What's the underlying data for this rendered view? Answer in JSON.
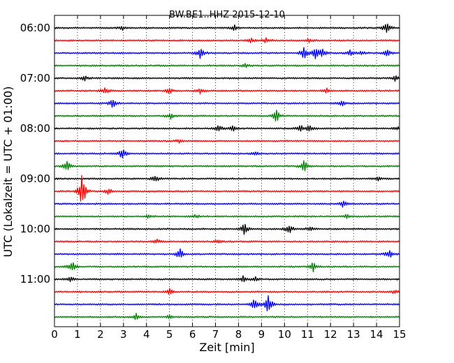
{
  "chart_data": {
    "type": "line",
    "title": "BW.BE1..HHZ 2015-12-10",
    "xlabel": "Zeit  [min]",
    "ylabel": "UTC (Lokalzeit = UTC + 01:00)",
    "xlim": [
      0,
      15
    ],
    "x_ticks": [
      "0",
      "1",
      "2",
      "3",
      "4",
      "5",
      "6",
      "7",
      "8",
      "9",
      "10",
      "11",
      "12",
      "13",
      "14",
      "15"
    ],
    "y_tick_labels": [
      "06:00",
      "07:00",
      "08:00",
      "09:00",
      "10:00",
      "11:00"
    ],
    "y_tick_trace_indices": [
      0,
      4,
      8,
      12,
      16,
      20
    ],
    "grid": "vertical dotted",
    "trace_colors": [
      "#000000",
      "#ff0000",
      "#0000ff",
      "#008000"
    ],
    "traces": [
      {
        "start": "06:00",
        "color": "#000000",
        "events": [
          [
            2.95,
            0.3
          ],
          [
            7.8,
            0.5
          ],
          [
            14.45,
            1.0
          ]
        ]
      },
      {
        "start": "06:15",
        "color": "#ff0000",
        "events": [
          [
            8.55,
            0.4
          ],
          [
            9.2,
            0.4
          ],
          [
            11.1,
            0.35
          ]
        ]
      },
      {
        "start": "06:30",
        "color": "#0000ff",
        "events": [
          [
            6.35,
            0.9
          ],
          [
            10.85,
            1.0
          ],
          [
            11.35,
            0.9
          ],
          [
            11.65,
            0.7
          ],
          [
            12.85,
            0.6
          ],
          [
            13.35,
            0.3
          ],
          [
            14.45,
            0.6
          ]
        ]
      },
      {
        "start": "06:45",
        "color": "#008000",
        "events": [
          [
            8.3,
            0.3
          ]
        ]
      },
      {
        "start": "07:00",
        "color": "#000000",
        "events": [
          [
            1.3,
            0.4
          ],
          [
            14.8,
            0.4
          ]
        ]
      },
      {
        "start": "07:15",
        "color": "#ff0000",
        "events": [
          [
            2.2,
            0.6
          ],
          [
            5.0,
            0.5
          ],
          [
            6.35,
            0.45
          ],
          [
            11.85,
            0.4
          ]
        ]
      },
      {
        "start": "07:30",
        "color": "#0000ff",
        "events": [
          [
            2.55,
            0.8
          ],
          [
            12.5,
            0.4
          ]
        ]
      },
      {
        "start": "07:45",
        "color": "#008000",
        "events": [
          [
            5.05,
            0.5
          ],
          [
            9.65,
            1.0
          ]
        ]
      },
      {
        "start": "08:00",
        "color": "#000000",
        "events": [
          [
            7.15,
            0.5
          ],
          [
            7.75,
            0.5
          ],
          [
            10.7,
            0.5
          ],
          [
            11.1,
            0.5
          ],
          [
            14.9,
            0.3
          ]
        ]
      },
      {
        "start": "08:15",
        "color": "#ff0000",
        "events": [
          [
            5.4,
            0.3
          ]
        ]
      },
      {
        "start": "08:30",
        "color": "#0000ff",
        "events": [
          [
            2.95,
            0.9
          ],
          [
            8.75,
            0.35
          ]
        ]
      },
      {
        "start": "08:45",
        "color": "#008000",
        "events": [
          [
            0.55,
            0.9
          ],
          [
            10.85,
            1.0
          ]
        ]
      },
      {
        "start": "09:00",
        "color": "#000000",
        "events": [
          [
            4.4,
            0.6
          ],
          [
            14.1,
            0.4
          ]
        ]
      },
      {
        "start": "09:15",
        "color": "#ff0000",
        "events": [
          [
            1.2,
            3.0
          ],
          [
            2.35,
            0.5
          ]
        ]
      },
      {
        "start": "09:30",
        "color": "#0000ff",
        "events": [
          [
            12.55,
            0.6
          ]
        ]
      },
      {
        "start": "09:45",
        "color": "#008000",
        "events": [
          [
            4.1,
            0.3
          ],
          [
            6.15,
            0.3
          ],
          [
            12.7,
            0.3
          ]
        ]
      },
      {
        "start": "10:00",
        "color": "#000000",
        "events": [
          [
            8.25,
            0.9
          ],
          [
            10.2,
            0.8
          ],
          [
            11.1,
            0.45
          ]
        ]
      },
      {
        "start": "10:15",
        "color": "#ff0000",
        "events": [
          [
            4.45,
            0.35
          ],
          [
            7.1,
            0.3
          ]
        ]
      },
      {
        "start": "10:30",
        "color": "#0000ff",
        "events": [
          [
            5.45,
            0.9
          ],
          [
            14.55,
            0.7
          ]
        ]
      },
      {
        "start": "10:45",
        "color": "#008000",
        "events": [
          [
            0.75,
            1.0
          ],
          [
            11.25,
            1.0
          ]
        ]
      },
      {
        "start": "11:00",
        "color": "#000000",
        "events": [
          [
            0.7,
            0.5
          ],
          [
            8.2,
            0.5
          ],
          [
            8.75,
            0.35
          ]
        ]
      },
      {
        "start": "11:15",
        "color": "#ff0000",
        "events": [
          [
            5.0,
            0.5
          ],
          [
            14.8,
            0.3
          ]
        ]
      },
      {
        "start": "11:30",
        "color": "#0000ff",
        "events": [
          [
            8.7,
            0.9
          ],
          [
            9.3,
            1.6
          ]
        ]
      },
      {
        "start": "11:45",
        "color": "#008000",
        "events": [
          [
            3.55,
            0.5
          ],
          [
            5.0,
            0.3
          ]
        ]
      }
    ]
  }
}
